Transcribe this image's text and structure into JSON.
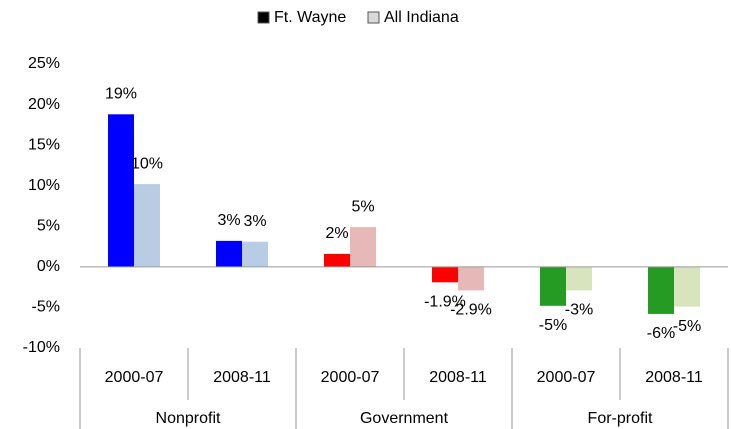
{
  "chart_data": {
    "type": "bar",
    "categories": [
      "2000-07",
      "2008-11",
      "2000-07",
      "2008-11",
      "2000-07",
      "2008-11"
    ],
    "groups": [
      "Nonprofit",
      "Government",
      "For-profit"
    ],
    "series": [
      {
        "name": "Ft. Wayne",
        "color": "#000000",
        "colors": [
          "#0000ff",
          "#0000ff",
          "#ff0000",
          "#ff0000",
          "#259b24",
          "#259b24"
        ],
        "values": [
          18.8,
          3.2,
          1.6,
          -1.9,
          -4.8,
          -5.8
        ],
        "value_labels": [
          "19%",
          "3%",
          "2%",
          "-1.9%",
          "-5%",
          "-6%"
        ]
      },
      {
        "name": "All Indiana",
        "color": "#d9d9d9",
        "colors": [
          "#b8cce4",
          "#b8cce4",
          "#e6b9b8",
          "#e6b9b8",
          "#d7e4bd",
          "#d7e4bd"
        ],
        "values": [
          10.2,
          3.1,
          4.9,
          -2.9,
          -2.9,
          -4.9
        ],
        "value_labels": [
          "10%",
          "3%",
          "5%",
          "-2.9%",
          "-3%",
          "-5%"
        ]
      }
    ],
    "ylim": [
      -10,
      25
    ],
    "yticks": [
      {
        "value": -10,
        "label": "-10%"
      },
      {
        "value": -5,
        "label": "-5%"
      },
      {
        "value": 0,
        "label": "0%"
      },
      {
        "value": 5,
        "label": "5%"
      },
      {
        "value": 10,
        "label": "10%"
      },
      {
        "value": 15,
        "label": "15%"
      },
      {
        "value": 20,
        "label": "20%"
      },
      {
        "value": 25,
        "label": "25%"
      }
    ],
    "legend": "top"
  }
}
